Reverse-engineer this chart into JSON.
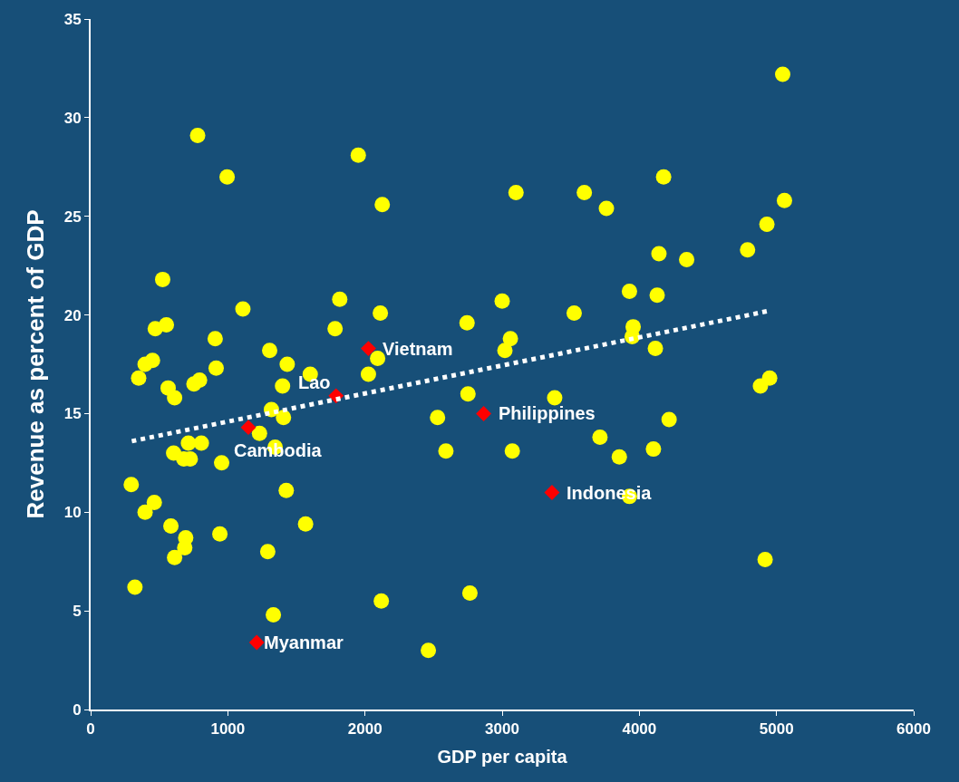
{
  "chart_data": {
    "type": "scatter",
    "xlabel": "GDP per capita",
    "ylabel": "Revenue as percent of GDP",
    "xlim": [
      0,
      6000
    ],
    "xticks": [
      0,
      1000,
      2000,
      3000,
      4000,
      5000,
      6000
    ],
    "ylim": [
      0,
      35
    ],
    "yticks": [
      0,
      5,
      10,
      15,
      20,
      25,
      30,
      35
    ],
    "grid": false,
    "series": [
      {
        "marker": "circle",
        "color": "#ffff00",
        "x": [
          5045,
          780,
          995,
          1951,
          2126,
          3101,
          3599,
          3760,
          4177,
          5058,
          4930,
          4143,
          4345,
          4789,
          525,
          1110,
          1816,
          2112,
          3000,
          3525,
          3928,
          4130,
          471,
          552,
          1782,
          2744,
          3955,
          3948,
          4117,
          908,
          3060,
          1305,
          3020,
          2092,
          451,
          397,
          1433,
          915,
          350,
          1601,
          2025,
          794,
          753,
          1399,
          565,
          612,
          2751,
          3383,
          4950,
          4883,
          1318,
          1406,
          2529,
          4217,
          1231,
          1345,
          713,
          807,
          605,
          679,
          726,
          955,
          2590,
          3074,
          3713,
          3854,
          4103,
          296,
          464,
          397,
          1426,
          3928,
          585,
          693,
          686,
          612,
          942,
          1567,
          1291,
          4917,
          323,
          1332,
          2119,
          2765,
          2462
        ],
        "values": [
          32.2,
          29.1,
          27.0,
          28.1,
          25.6,
          26.2,
          26.2,
          25.4,
          27.0,
          25.8,
          24.6,
          23.1,
          22.8,
          23.3,
          21.8,
          20.3,
          20.8,
          20.1,
          20.7,
          20.1,
          21.2,
          21.0,
          19.3,
          19.5,
          19.3,
          19.6,
          19.4,
          18.9,
          18.3,
          18.8,
          18.8,
          18.2,
          18.2,
          17.8,
          17.7,
          17.5,
          17.5,
          17.3,
          16.8,
          17.0,
          17.0,
          16.7,
          16.5,
          16.4,
          16.3,
          15.8,
          16.0,
          15.8,
          16.8,
          16.4,
          15.2,
          14.8,
          14.8,
          14.7,
          14.0,
          13.3,
          13.5,
          13.5,
          13.0,
          12.7,
          12.7,
          12.5,
          13.1,
          13.1,
          13.8,
          12.8,
          13.2,
          11.4,
          10.5,
          10.0,
          11.1,
          10.8,
          9.3,
          8.7,
          8.2,
          7.7,
          8.9,
          9.4,
          8.0,
          7.6,
          6.2,
          4.8,
          5.5,
          5.9,
          3.0
        ]
      },
      {
        "type": "scatter",
        "marker": "diamond",
        "color": "#ff0000",
        "x": [
          2025,
          1789,
          2865,
          1150,
          3363,
          1211
        ],
        "values": [
          18.3,
          15.9,
          15.0,
          14.3,
          11.0,
          3.4
        ]
      },
      {
        "type": "line",
        "marker": "none",
        "line_style": "dotted",
        "color": "#ffffff",
        "x": [
          300,
          4940
        ],
        "values": [
          13.6,
          20.2
        ]
      }
    ],
    "annotations": [
      {
        "text": "Vietnam",
        "x": 2025,
        "y": 18.3
      },
      {
        "text": "Lao",
        "x": 1789,
        "y": 15.9
      },
      {
        "text": "Philippines",
        "x": 2865,
        "y": 15.0
      },
      {
        "text": "Cambodia",
        "x": 1150,
        "y": 14.3
      },
      {
        "text": "Indonesia",
        "x": 3363,
        "y": 11.0
      },
      {
        "text": "Myanmar",
        "x": 1211,
        "y": 3.4
      }
    ]
  }
}
